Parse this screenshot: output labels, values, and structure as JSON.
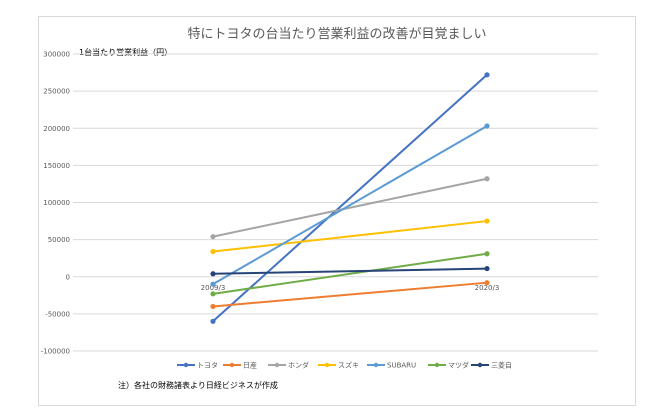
{
  "chart_data": {
    "type": "line",
    "title": "特にトヨタの台当たり営業利益の改善が目覚ましい",
    "ylabel": "1台当たり営業利益（円）",
    "categories": [
      "2009/3",
      "2020/3"
    ],
    "ylim": [
      -100000,
      300000
    ],
    "yticks": [
      300000,
      250000,
      200000,
      150000,
      100000,
      50000,
      0,
      -50000,
      -100000
    ],
    "grid": true,
    "legend_position": "bottom",
    "series": [
      {
        "name": "トヨタ",
        "color": "#4472c4",
        "values": [
          -60000,
          272000
        ]
      },
      {
        "name": "日産",
        "color": "#ed7d31",
        "values": [
          -40000,
          -8000
        ]
      },
      {
        "name": "ホンダ",
        "color": "#a5a5a5",
        "values": [
          54000,
          132000
        ]
      },
      {
        "name": "スズキ",
        "color": "#ffc000",
        "values": [
          34000,
          75000
        ]
      },
      {
        "name": "SUBARU",
        "color": "#5b9bd5",
        "values": [
          -10000,
          203000
        ]
      },
      {
        "name": "マツダ",
        "color": "#70ad47",
        "values": [
          -23000,
          31000
        ]
      },
      {
        "name": "三菱自",
        "color": "#264478",
        "values": [
          4000,
          11000
        ]
      }
    ],
    "note": "注）各社の財務諸表より日経ビジネスが作成"
  }
}
